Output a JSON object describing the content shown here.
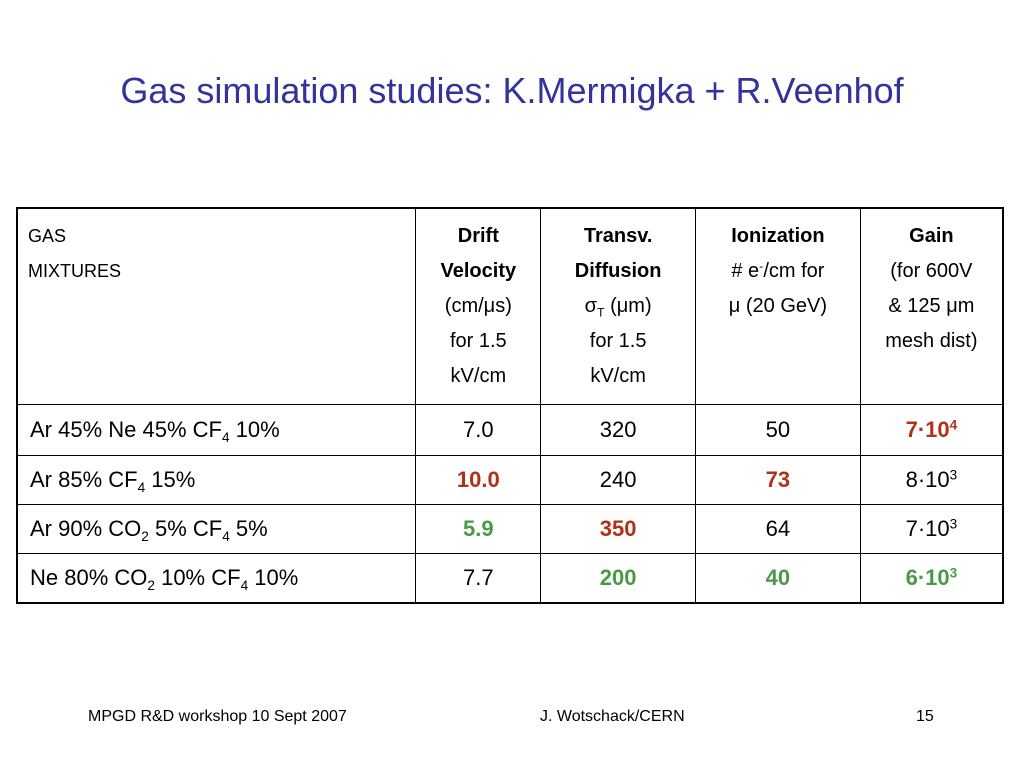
{
  "title": "Gas simulation studies: K.Mermigka + R.Veenhof",
  "colors": {
    "title": "#333399",
    "best": "#b03018",
    "worst": "#4a9a45"
  },
  "table": {
    "header": {
      "mixtures": [
        "GAS",
        "MIXTURES"
      ],
      "drift": {
        "bold": [
          "Drift",
          "Velocity"
        ],
        "lines": [
          "(cm/μs)",
          "for 1.5",
          "kV/cm"
        ]
      },
      "transv": {
        "bold": [
          "Transv.",
          "Diffusion"
        ],
        "sigma": "σ",
        "sigma_sub": "T",
        "sigma_unit": " (μm)",
        "lines": [
          "for 1.5",
          "kV/cm"
        ]
      },
      "ionization": {
        "bold": [
          "Ionization"
        ],
        "pre": "# e",
        "sup": "-",
        "post": "/cm for",
        "line2": "μ (20 GeV)"
      },
      "gain": {
        "bold": [
          "Gain"
        ],
        "lines": [
          "(for 600V",
          "& 125 μm",
          "mesh dist)"
        ]
      }
    },
    "rows": [
      {
        "mixture": {
          "p1": "Ar 45%  Ne 45%   CF",
          "s1": "4",
          "p2": " 10%",
          "s2": "",
          "p3": ""
        },
        "drift": "7.0",
        "transv": "320",
        "ionization": "50",
        "gain_base": "7·10",
        "gain_exp": "4"
      },
      {
        "mixture": {
          "p1": "Ar 85%  CF",
          "s1": "4",
          "p2": " 15%",
          "s2": "",
          "p3": ""
        },
        "drift": "10.0",
        "transv": "240",
        "ionization": "73",
        "gain_base": "8·10",
        "gain_exp": "3"
      },
      {
        "mixture": {
          "p1": "Ar 90%  CO",
          "s1": "2",
          "p2": " 5%    CF",
          "s2": "4",
          "p3": " 5%"
        },
        "drift": "5.9",
        "transv": "350",
        "ionization": "64",
        "gain_base": "7·10",
        "gain_exp": "3"
      },
      {
        "mixture": {
          "p1": "Ne 80% CO",
          "s1": "2",
          "p2": " 10%  CF",
          "s2": "4",
          "p3": " 10%"
        },
        "drift": "7.7",
        "transv": "200",
        "ionization": "40",
        "gain_base": "6·10",
        "gain_exp": "3"
      }
    ]
  },
  "footer": {
    "left": "MPGD R&D workshop 10 Sept 2007",
    "center": "J. Wotschack/CERN",
    "page": "15"
  }
}
